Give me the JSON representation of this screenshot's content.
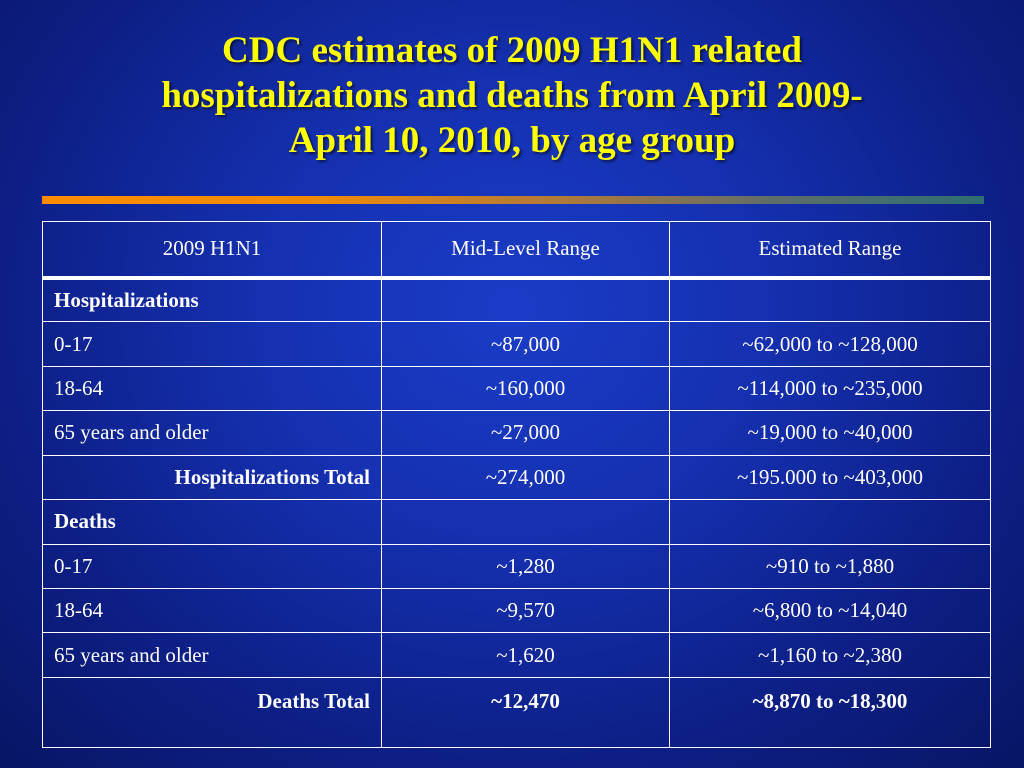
{
  "slide": {
    "title_lines": [
      "CDC estimates of 2009 H1N1 related",
      "hospitalizations and deaths from April 2009-",
      "April 10, 2010, by age group"
    ],
    "colors": {
      "background": "#1530b0",
      "title": "#ffff00",
      "table_text": "#ffffff",
      "rule_start": "#ff8c00",
      "rule_end": "#2c6f73"
    }
  },
  "table": {
    "headers": [
      "2009 H1N1",
      "Mid-Level Range",
      "Estimated Range"
    ],
    "rows": [
      {
        "label": "Hospitalizations",
        "mid": "",
        "range": ""
      },
      {
        "label": "0-17",
        "mid": "~87,000",
        "range": "~62,000 to ~128,000"
      },
      {
        "label": "18-64",
        "mid": "~160,000",
        "range": "~114,000 to ~235,000"
      },
      {
        "label": "65 years and older",
        "mid": "~27,000",
        "range": "~19,000 to ~40,000"
      },
      {
        "label": "Hospitalizations Total",
        "mid": "~274,000",
        "range": "~195.000 to ~403,000"
      },
      {
        "label": "Deaths",
        "mid": "",
        "range": ""
      },
      {
        "label": "0-17",
        "mid": "~1,280",
        "range": "~910 to ~1,880"
      },
      {
        "label": "18-64",
        "mid": "~9,570",
        "range": "~6,800 to ~14,040"
      },
      {
        "label": "65 years and older",
        "mid": "~1,620",
        "range": "~1,160 to ~2,380"
      },
      {
        "label": "Deaths Total",
        "mid": "~12,470",
        "range": "~8,870 to ~18,300"
      }
    ]
  }
}
